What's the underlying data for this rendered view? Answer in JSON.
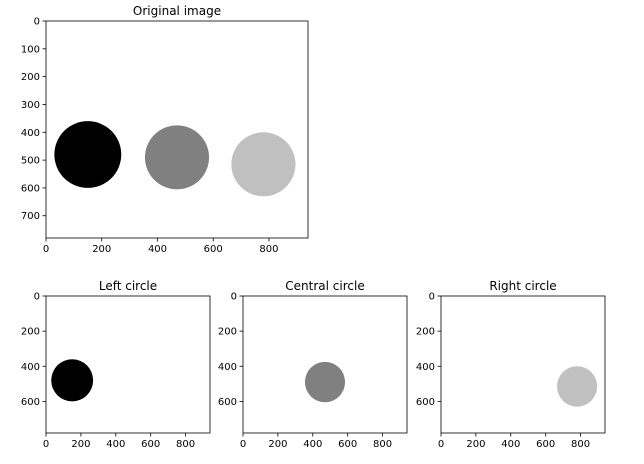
{
  "chart_data": [
    {
      "type": "image",
      "title": "Original image",
      "xlim": [
        0,
        940
      ],
      "ylim": [
        780,
        0
      ],
      "xticks": [
        0,
        200,
        400,
        600,
        800
      ],
      "yticks": [
        0,
        100,
        200,
        300,
        400,
        500,
        600,
        700
      ],
      "background": "#ffffff",
      "circles": [
        {
          "cx": 150,
          "cy": 480,
          "r": 120,
          "color": "#000000"
        },
        {
          "cx": 470,
          "cy": 490,
          "r": 115,
          "color": "#808080"
        },
        {
          "cx": 780,
          "cy": 515,
          "r": 115,
          "color": "#c0c0c0"
        }
      ]
    },
    {
      "type": "image",
      "title": "Left circle",
      "xlim": [
        0,
        940
      ],
      "ylim": [
        780,
        0
      ],
      "xticks": [
        0,
        200,
        400,
        600,
        800
      ],
      "yticks": [
        0,
        200,
        400,
        600
      ],
      "background": "#ffffff",
      "circles": [
        {
          "cx": 150,
          "cy": 480,
          "r": 120,
          "color": "#000000"
        }
      ]
    },
    {
      "type": "image",
      "title": "Central circle",
      "xlim": [
        0,
        940
      ],
      "ylim": [
        780,
        0
      ],
      "xticks": [
        0,
        200,
        400,
        600,
        800
      ],
      "yticks": [
        0,
        200,
        400,
        600
      ],
      "background": "#ffffff",
      "circles": [
        {
          "cx": 470,
          "cy": 490,
          "r": 115,
          "color": "#808080"
        }
      ]
    },
    {
      "type": "image",
      "title": "Right circle",
      "xlim": [
        0,
        940
      ],
      "ylim": [
        780,
        0
      ],
      "xticks": [
        0,
        200,
        400,
        600,
        800
      ],
      "yticks": [
        0,
        200,
        400,
        600
      ],
      "background": "#ffffff",
      "circles": [
        {
          "cx": 780,
          "cy": 515,
          "r": 115,
          "color": "#c0c0c0"
        }
      ]
    }
  ]
}
